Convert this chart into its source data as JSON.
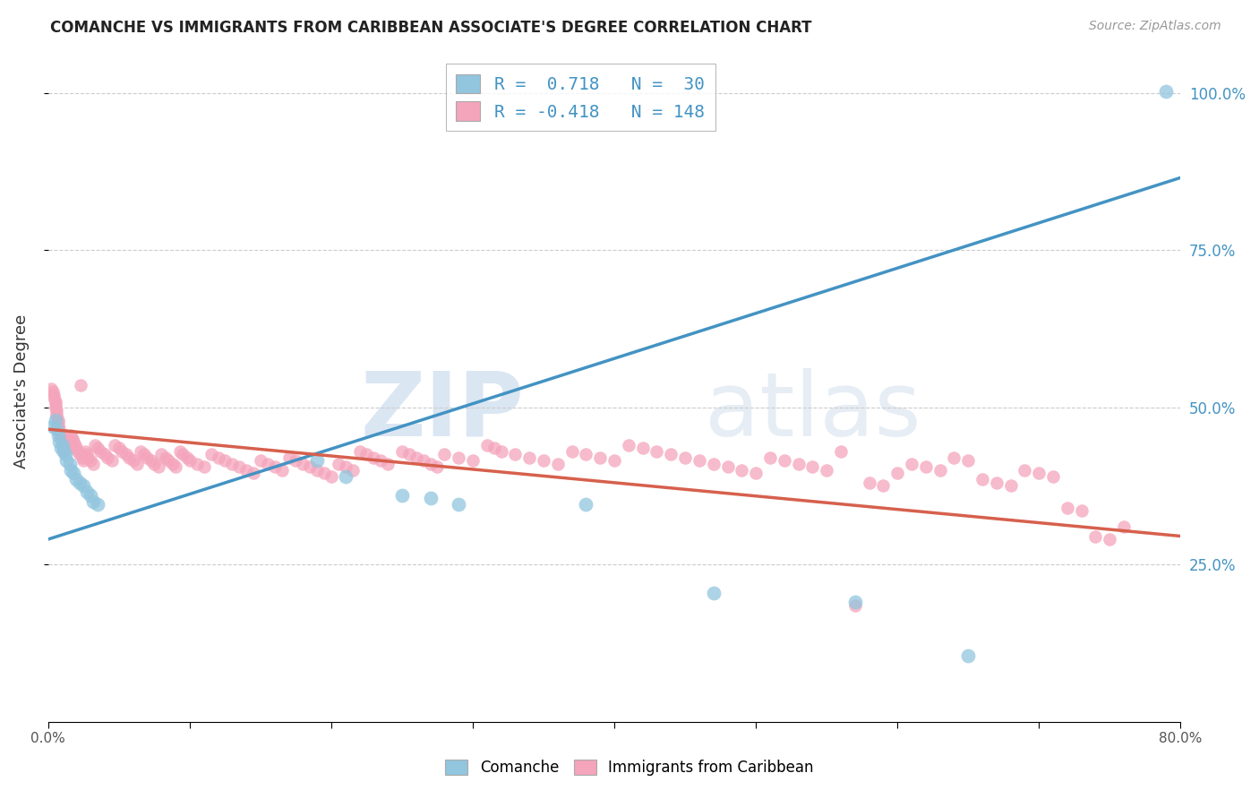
{
  "title": "COMANCHE VS IMMIGRANTS FROM CARIBBEAN ASSOCIATE'S DEGREE CORRELATION CHART",
  "source": "Source: ZipAtlas.com",
  "ylabel": "Associate's Degree",
  "watermark_zip": "ZIP",
  "watermark_atlas": "atlas",
  "blue_R": 0.718,
  "blue_N": 30,
  "pink_R": -0.418,
  "pink_N": 148,
  "blue_color": "#92c5de",
  "pink_color": "#f4a4bb",
  "blue_line_color": "#4393c3",
  "pink_line_color": "#d6604d",
  "blue_scatter": [
    [
      0.003,
      0.47
    ],
    [
      0.005,
      0.48
    ],
    [
      0.006,
      0.465
    ],
    [
      0.007,
      0.455
    ],
    [
      0.008,
      0.445
    ],
    [
      0.009,
      0.435
    ],
    [
      0.01,
      0.44
    ],
    [
      0.011,
      0.43
    ],
    [
      0.012,
      0.425
    ],
    [
      0.013,
      0.415
    ],
    [
      0.015,
      0.41
    ],
    [
      0.016,
      0.4
    ],
    [
      0.018,
      0.395
    ],
    [
      0.02,
      0.385
    ],
    [
      0.022,
      0.38
    ],
    [
      0.025,
      0.375
    ],
    [
      0.027,
      0.365
    ],
    [
      0.03,
      0.36
    ],
    [
      0.032,
      0.35
    ],
    [
      0.035,
      0.345
    ],
    [
      0.19,
      0.415
    ],
    [
      0.21,
      0.39
    ],
    [
      0.25,
      0.36
    ],
    [
      0.27,
      0.355
    ],
    [
      0.29,
      0.345
    ],
    [
      0.38,
      0.345
    ],
    [
      0.47,
      0.205
    ],
    [
      0.57,
      0.19
    ],
    [
      0.65,
      0.105
    ],
    [
      0.79,
      1.003
    ]
  ],
  "pink_scatter": [
    [
      0.002,
      0.53
    ],
    [
      0.003,
      0.525
    ],
    [
      0.004,
      0.52
    ],
    [
      0.004,
      0.515
    ],
    [
      0.005,
      0.51
    ],
    [
      0.005,
      0.505
    ],
    [
      0.005,
      0.5
    ],
    [
      0.006,
      0.495
    ],
    [
      0.006,
      0.49
    ],
    [
      0.006,
      0.485
    ],
    [
      0.007,
      0.48
    ],
    [
      0.007,
      0.475
    ],
    [
      0.007,
      0.47
    ],
    [
      0.008,
      0.465
    ],
    [
      0.008,
      0.46
    ],
    [
      0.009,
      0.455
    ],
    [
      0.009,
      0.45
    ],
    [
      0.01,
      0.445
    ],
    [
      0.01,
      0.44
    ],
    [
      0.011,
      0.435
    ],
    [
      0.011,
      0.43
    ],
    [
      0.012,
      0.455
    ],
    [
      0.013,
      0.445
    ],
    [
      0.014,
      0.44
    ],
    [
      0.015,
      0.435
    ],
    [
      0.016,
      0.455
    ],
    [
      0.017,
      0.45
    ],
    [
      0.018,
      0.445
    ],
    [
      0.019,
      0.44
    ],
    [
      0.02,
      0.435
    ],
    [
      0.021,
      0.43
    ],
    [
      0.022,
      0.425
    ],
    [
      0.023,
      0.535
    ],
    [
      0.024,
      0.42
    ],
    [
      0.025,
      0.415
    ],
    [
      0.026,
      0.43
    ],
    [
      0.027,
      0.425
    ],
    [
      0.028,
      0.42
    ],
    [
      0.03,
      0.415
    ],
    [
      0.032,
      0.41
    ],
    [
      0.033,
      0.44
    ],
    [
      0.035,
      0.435
    ],
    [
      0.037,
      0.43
    ],
    [
      0.04,
      0.425
    ],
    [
      0.042,
      0.42
    ],
    [
      0.045,
      0.415
    ],
    [
      0.047,
      0.44
    ],
    [
      0.05,
      0.435
    ],
    [
      0.052,
      0.43
    ],
    [
      0.055,
      0.425
    ],
    [
      0.057,
      0.42
    ],
    [
      0.06,
      0.415
    ],
    [
      0.063,
      0.41
    ],
    [
      0.065,
      0.43
    ],
    [
      0.068,
      0.425
    ],
    [
      0.07,
      0.42
    ],
    [
      0.073,
      0.415
    ],
    [
      0.075,
      0.41
    ],
    [
      0.078,
      0.405
    ],
    [
      0.08,
      0.425
    ],
    [
      0.083,
      0.42
    ],
    [
      0.085,
      0.415
    ],
    [
      0.088,
      0.41
    ],
    [
      0.09,
      0.405
    ],
    [
      0.093,
      0.43
    ],
    [
      0.095,
      0.425
    ],
    [
      0.098,
      0.42
    ],
    [
      0.1,
      0.415
    ],
    [
      0.105,
      0.41
    ],
    [
      0.11,
      0.405
    ],
    [
      0.115,
      0.425
    ],
    [
      0.12,
      0.42
    ],
    [
      0.125,
      0.415
    ],
    [
      0.13,
      0.41
    ],
    [
      0.135,
      0.405
    ],
    [
      0.14,
      0.4
    ],
    [
      0.145,
      0.395
    ],
    [
      0.15,
      0.415
    ],
    [
      0.155,
      0.41
    ],
    [
      0.16,
      0.405
    ],
    [
      0.165,
      0.4
    ],
    [
      0.17,
      0.42
    ],
    [
      0.175,
      0.415
    ],
    [
      0.18,
      0.41
    ],
    [
      0.185,
      0.405
    ],
    [
      0.19,
      0.4
    ],
    [
      0.195,
      0.395
    ],
    [
      0.2,
      0.39
    ],
    [
      0.205,
      0.41
    ],
    [
      0.21,
      0.405
    ],
    [
      0.215,
      0.4
    ],
    [
      0.22,
      0.43
    ],
    [
      0.225,
      0.425
    ],
    [
      0.23,
      0.42
    ],
    [
      0.235,
      0.415
    ],
    [
      0.24,
      0.41
    ],
    [
      0.25,
      0.43
    ],
    [
      0.255,
      0.425
    ],
    [
      0.26,
      0.42
    ],
    [
      0.265,
      0.415
    ],
    [
      0.27,
      0.41
    ],
    [
      0.275,
      0.405
    ],
    [
      0.28,
      0.425
    ],
    [
      0.29,
      0.42
    ],
    [
      0.3,
      0.415
    ],
    [
      0.31,
      0.44
    ],
    [
      0.315,
      0.435
    ],
    [
      0.32,
      0.43
    ],
    [
      0.33,
      0.425
    ],
    [
      0.34,
      0.42
    ],
    [
      0.35,
      0.415
    ],
    [
      0.36,
      0.41
    ],
    [
      0.37,
      0.43
    ],
    [
      0.38,
      0.425
    ],
    [
      0.39,
      0.42
    ],
    [
      0.4,
      0.415
    ],
    [
      0.41,
      0.44
    ],
    [
      0.42,
      0.435
    ],
    [
      0.43,
      0.43
    ],
    [
      0.44,
      0.425
    ],
    [
      0.45,
      0.42
    ],
    [
      0.46,
      0.415
    ],
    [
      0.47,
      0.41
    ],
    [
      0.48,
      0.405
    ],
    [
      0.49,
      0.4
    ],
    [
      0.5,
      0.395
    ],
    [
      0.51,
      0.42
    ],
    [
      0.52,
      0.415
    ],
    [
      0.53,
      0.41
    ],
    [
      0.54,
      0.405
    ],
    [
      0.55,
      0.4
    ],
    [
      0.56,
      0.43
    ],
    [
      0.57,
      0.185
    ],
    [
      0.58,
      0.38
    ],
    [
      0.59,
      0.375
    ],
    [
      0.6,
      0.395
    ],
    [
      0.61,
      0.41
    ],
    [
      0.62,
      0.405
    ],
    [
      0.63,
      0.4
    ],
    [
      0.64,
      0.42
    ],
    [
      0.65,
      0.415
    ],
    [
      0.66,
      0.385
    ],
    [
      0.67,
      0.38
    ],
    [
      0.68,
      0.375
    ],
    [
      0.69,
      0.4
    ],
    [
      0.7,
      0.395
    ],
    [
      0.71,
      0.39
    ],
    [
      0.72,
      0.34
    ],
    [
      0.73,
      0.335
    ],
    [
      0.74,
      0.295
    ],
    [
      0.75,
      0.29
    ],
    [
      0.76,
      0.31
    ]
  ],
  "xlim": [
    0.0,
    0.8
  ],
  "ylim": [
    0.0,
    1.05
  ],
  "xticks": [
    0.0,
    0.1,
    0.2,
    0.3,
    0.4,
    0.5,
    0.6,
    0.7,
    0.8
  ],
  "xtick_labels": [
    "0.0%",
    "",
    "",
    "",
    "",
    "",
    "",
    "",
    "80.0%"
  ],
  "yticks_right": [
    0.25,
    0.5,
    0.75,
    1.0
  ],
  "ytick_right_labels": [
    "25.0%",
    "50.0%",
    "75.0%",
    "100.0%"
  ],
  "grid_color": "#cccccc",
  "background_color": "#ffffff",
  "blue_trend": [
    0.0,
    0.8,
    0.29,
    0.865
  ],
  "pink_trend": [
    0.0,
    0.8,
    0.465,
    0.295
  ]
}
